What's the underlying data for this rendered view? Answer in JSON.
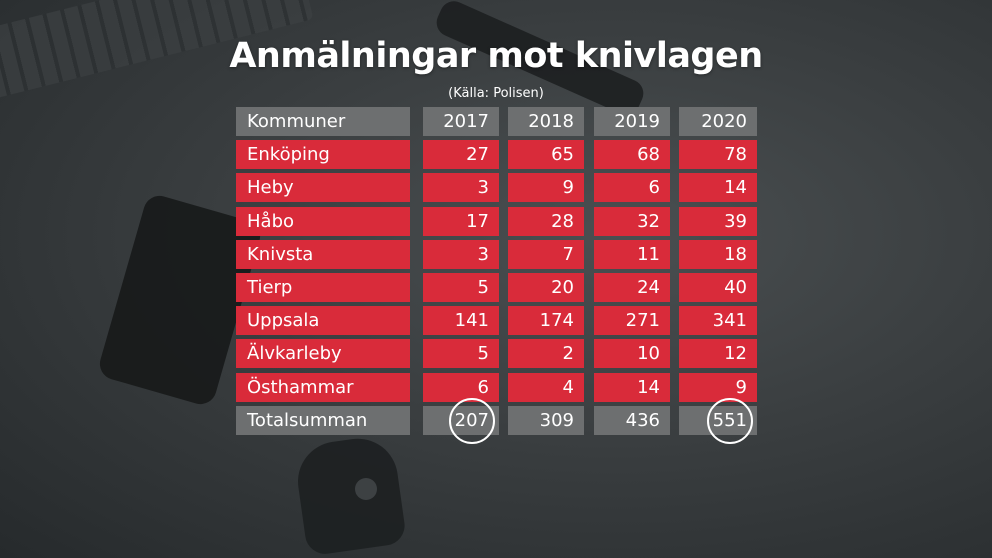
{
  "title": "Anmälningar mot knivlagen",
  "source": "(Källa: Polisen)",
  "chart_data": {
    "type": "table",
    "columns": [
      "Kommuner",
      "2017",
      "2018",
      "2019",
      "2020"
    ],
    "rows": [
      {
        "name": "Enköping",
        "values": [
          "27",
          "65",
          "68",
          "78"
        ]
      },
      {
        "name": "Heby",
        "values": [
          "3",
          "9",
          "6",
          "14"
        ]
      },
      {
        "name": "Håbo",
        "values": [
          "17",
          "28",
          "32",
          "39"
        ]
      },
      {
        "name": "Knivsta",
        "values": [
          "3",
          "7",
          "11",
          "18"
        ]
      },
      {
        "name": "Tierp",
        "values": [
          "5",
          "20",
          "24",
          "40"
        ]
      },
      {
        "name": "Uppsala",
        "values": [
          "141",
          "174",
          "271",
          "341"
        ]
      },
      {
        "name": "Älvkarleby",
        "values": [
          "5",
          "2",
          "10",
          "12"
        ]
      },
      {
        "name": "Östhammar",
        "values": [
          "6",
          "4",
          "14",
          "9"
        ]
      }
    ],
    "total": {
      "name": "Totalsumman",
      "values": [
        "207",
        "309",
        "436",
        "551"
      ]
    },
    "circled_totals": [
      "2017",
      "2020"
    ]
  },
  "colors": {
    "header_bg": "#6d6f70",
    "row_bg": "#d92b3a",
    "text": "#ffffff"
  }
}
